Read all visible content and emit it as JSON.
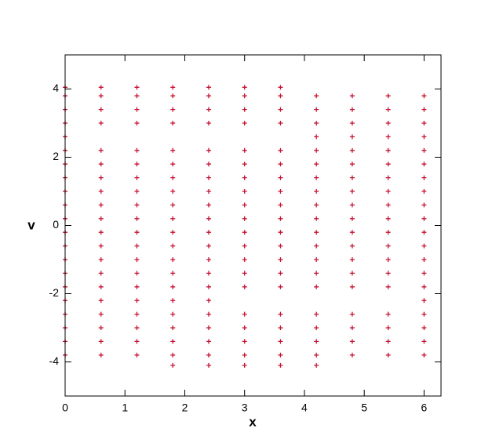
{
  "chart_data": {
    "type": "scatter",
    "xlabel": "x",
    "ylabel": "v",
    "color": "#c8102e",
    "xlim": [
      0,
      6.2832
    ],
    "ylim": [
      -5,
      5
    ],
    "xticks": [
      0,
      1,
      2,
      3,
      4,
      5,
      6
    ],
    "yticks": [
      -4,
      -2,
      0,
      2,
      4
    ],
    "x": [
      1.8,
      2.4,
      3.0,
      3.6,
      4.2,
      0,
      0.6,
      1.2,
      1.8,
      2.4,
      3.0,
      3.6,
      4.2,
      4.8,
      5.4,
      6.0,
      0,
      0.6,
      1.2,
      1.8,
      2.4,
      3.0,
      3.6,
      4.2,
      4.8,
      5.4,
      6.0,
      0,
      0.6,
      1.2,
      1.8,
      2.4,
      3.0,
      3.6,
      4.2,
      4.8,
      5.4,
      6.0,
      0,
      0.6,
      1.2,
      1.8,
      2.4,
      3.0,
      3.6,
      4.2,
      4.8,
      5.4,
      6.0,
      0,
      0.6,
      1.2,
      1.8,
      2.4,
      6.0,
      0,
      0.6,
      1.2,
      1.8,
      2.4,
      3.0,
      3.6,
      4.2,
      4.8,
      5.4,
      6.0,
      0,
      0.6,
      1.2,
      1.8,
      2.4,
      3.0,
      3.6,
      4.2,
      4.8,
      5.4,
      6.0,
      0,
      0.6,
      1.2,
      1.8,
      2.4,
      3.0,
      3.6,
      4.2,
      4.8,
      5.4,
      6.0,
      0,
      0.6,
      1.2,
      1.8,
      2.4,
      3.0,
      3.6,
      4.2,
      4.8,
      5.4,
      6.0,
      0,
      0.6,
      1.2,
      1.8,
      2.4,
      3.0,
      3.6,
      4.2,
      4.8,
      5.4,
      6.0,
      0,
      0.6,
      1.2,
      1.8,
      2.4,
      3.0,
      3.6,
      4.2,
      4.8,
      5.4,
      6.0,
      0,
      0.6,
      1.2,
      1.8,
      2.4,
      3.0,
      3.6,
      4.2,
      4.8,
      5.4,
      6.0,
      0,
      0.6,
      1.2,
      1.8,
      2.4,
      3.0,
      3.6,
      4.2,
      4.8,
      5.4,
      6.0,
      0,
      0.6,
      1.2,
      1.8,
      2.4,
      3.0,
      3.6,
      4.2,
      4.8,
      5.4,
      6.0,
      0,
      0.6,
      1.2,
      1.8,
      2.4,
      3.0,
      3.6,
      4.2,
      4.8,
      5.4,
      6.0,
      0,
      0.6,
      1.2,
      1.8,
      2.4,
      3.0,
      3.6,
      4.2,
      4.8,
      5.4,
      6.0,
      0,
      4.2,
      4.8,
      5.4,
      6.0,
      0,
      0.6,
      1.2,
      1.8,
      2.4,
      3.0,
      3.6,
      4.2,
      4.8,
      5.4,
      6.0,
      0,
      0.6,
      1.2,
      1.8,
      2.4,
      3.0,
      3.6,
      4.2,
      4.8,
      5.4,
      6.0,
      0,
      0.6,
      1.2,
      1.8,
      2.4,
      3.0,
      3.6,
      4.2,
      4.8,
      5.4,
      6.0,
      0,
      0.6,
      1.2,
      1.8,
      2.4,
      3.0,
      3.6
    ],
    "y": [
      -4.1,
      -4.1,
      -4.1,
      -4.1,
      -4.1,
      -3.8,
      -3.8,
      -3.8,
      -3.8,
      -3.8,
      -3.8,
      -3.8,
      -3.8,
      -3.8,
      -3.8,
      -3.8,
      -3.4,
      -3.4,
      -3.4,
      -3.4,
      -3.4,
      -3.4,
      -3.4,
      -3.4,
      -3.4,
      -3.4,
      -3.4,
      -3.0,
      -3.0,
      -3.0,
      -3.0,
      -3.0,
      -3.0,
      -3.0,
      -3.0,
      -3.0,
      -3.0,
      -3.0,
      -2.6,
      -2.6,
      -2.6,
      -2.6,
      -2.6,
      -2.6,
      -2.6,
      -2.6,
      -2.6,
      -2.6,
      -2.6,
      -2.2,
      -2.2,
      -2.2,
      -2.2,
      -2.2,
      -2.2,
      -1.8,
      -1.8,
      -1.8,
      -1.8,
      -1.8,
      -1.8,
      -1.8,
      -1.8,
      -1.8,
      -1.8,
      -1.8,
      -1.4,
      -1.4,
      -1.4,
      -1.4,
      -1.4,
      -1.4,
      -1.4,
      -1.4,
      -1.4,
      -1.4,
      -1.4,
      -1.0,
      -1.0,
      -1.0,
      -1.0,
      -1.0,
      -1.0,
      -1.0,
      -1.0,
      -1.0,
      -1.0,
      -1.0,
      -0.6,
      -0.6,
      -0.6,
      -0.6,
      -0.6,
      -0.6,
      -0.6,
      -0.6,
      -0.6,
      -0.6,
      -0.6,
      -0.2,
      -0.2,
      -0.2,
      -0.2,
      -0.2,
      -0.2,
      -0.2,
      -0.2,
      -0.2,
      -0.2,
      -0.2,
      0.2,
      0.2,
      0.2,
      0.2,
      0.2,
      0.2,
      0.2,
      0.2,
      0.2,
      0.2,
      0.2,
      0.6,
      0.6,
      0.6,
      0.6,
      0.6,
      0.6,
      0.6,
      0.6,
      0.6,
      0.6,
      0.6,
      1.0,
      1.0,
      1.0,
      1.0,
      1.0,
      1.0,
      1.0,
      1.0,
      1.0,
      1.0,
      1.0,
      1.4,
      1.4,
      1.4,
      1.4,
      1.4,
      1.4,
      1.4,
      1.4,
      1.4,
      1.4,
      1.4,
      1.8,
      1.8,
      1.8,
      1.8,
      1.8,
      1.8,
      1.8,
      1.8,
      1.8,
      1.8,
      1.8,
      2.2,
      2.2,
      2.2,
      2.2,
      2.2,
      2.2,
      2.2,
      2.2,
      2.2,
      2.2,
      2.2,
      2.6,
      2.6,
      2.6,
      2.6,
      2.6,
      3.0,
      3.0,
      3.0,
      3.0,
      3.0,
      3.0,
      3.0,
      3.0,
      3.0,
      3.0,
      3.0,
      3.4,
      3.4,
      3.4,
      3.4,
      3.4,
      3.4,
      3.4,
      3.4,
      3.4,
      3.4,
      3.4,
      3.8,
      3.8,
      3.8,
      3.8,
      3.8,
      3.8,
      3.8,
      3.8,
      3.8,
      3.8,
      3.8,
      4.05,
      4.05,
      4.05,
      4.05,
      4.05,
      4.05,
      4.05
    ]
  }
}
